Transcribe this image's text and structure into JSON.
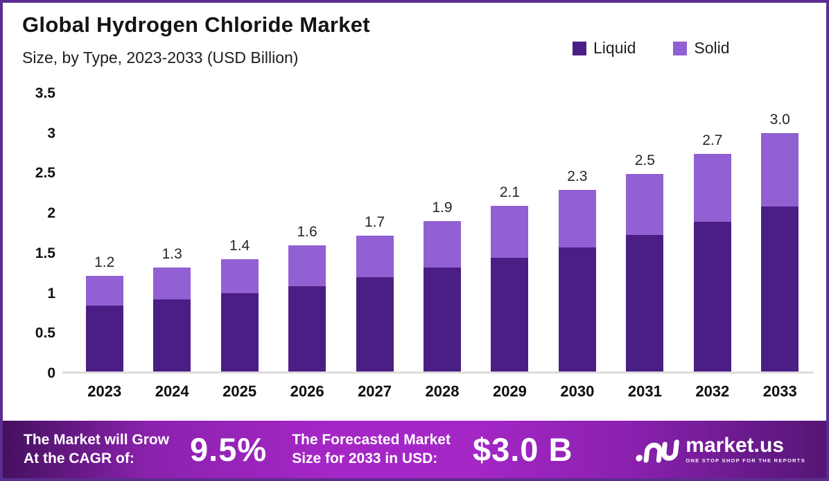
{
  "header": {
    "title": "Global Hydrogen Chloride Market",
    "subtitle": "Size, by Type, 2023-2033 (USD Billion)"
  },
  "colors": {
    "liquid": "#4a1e85",
    "solid": "#9160d2",
    "frame_border": "#5c2d91",
    "axis_line": "#dcdcdc",
    "banner_center": "#a526c6",
    "banner_edge": "#45105f"
  },
  "chart_data": {
    "type": "bar",
    "stacked": true,
    "title": "Global Hydrogen Chloride Market Size, by Type, 2023-2033 (USD Billion)",
    "categories": [
      "2023",
      "2024",
      "2025",
      "2026",
      "2027",
      "2028",
      "2029",
      "2030",
      "2031",
      "2032",
      "2033"
    ],
    "series": [
      {
        "name": "Liquid",
        "color": "#4a1e85",
        "values": [
          0.82,
          0.9,
          0.98,
          1.07,
          1.18,
          1.3,
          1.42,
          1.55,
          1.71,
          1.87,
          2.06
        ]
      },
      {
        "name": "Solid",
        "color": "#9160d2",
        "values": [
          0.38,
          0.4,
          0.42,
          0.51,
          0.52,
          0.58,
          0.65,
          0.72,
          0.76,
          0.85,
          0.92
        ]
      }
    ],
    "total_labels": [
      "1.2",
      "1.3",
      "1.4",
      "1.6",
      "1.7",
      "1.9",
      "2.1",
      "2.3",
      "2.5",
      "2.7",
      "3.0"
    ],
    "xlabel": "",
    "ylabel": "",
    "ylim": [
      0,
      3.5
    ],
    "yticks": [
      "3.5",
      "3",
      "2.5",
      "2",
      "1.5",
      "1",
      "0.5",
      "0"
    ],
    "grid": false,
    "legend_position": "top-right"
  },
  "footer": {
    "cagr_line1": "The Market will Grow",
    "cagr_line2": "At the CAGR of:",
    "cagr_value": "9.5%",
    "forecast_line1": "The Forecasted Market",
    "forecast_line2": "Size for 2033 in USD:",
    "forecast_value": "$3.0 B",
    "brand_name": "market.us",
    "brand_tagline": "ONE STOP SHOP FOR THE REPORTS"
  }
}
